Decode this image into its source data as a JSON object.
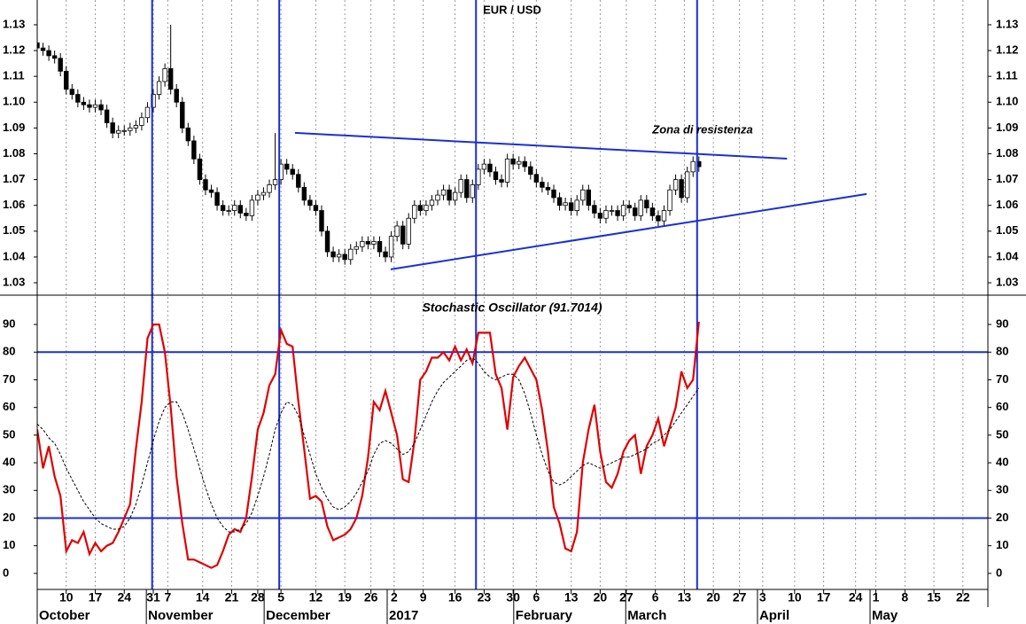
{
  "chart_data": [
    {
      "type": "candlestick",
      "title": "EUR / USD",
      "open": [
        1.123,
        1.121,
        1.12,
        1.118,
        1.117,
        1.112,
        1.105,
        1.103,
        1.1,
        1.099,
        1.098,
        1.099,
        1.097,
        1.092,
        1.088,
        1.089,
        1.089,
        1.09,
        1.091,
        1.094,
        1.098,
        1.103,
        1.108,
        1.113,
        1.105,
        1.1,
        1.09,
        1.085,
        1.078,
        1.07,
        1.066,
        1.065,
        1.06,
        1.058,
        1.058,
        1.06,
        1.057,
        1.056,
        1.062,
        1.064,
        1.065,
        1.068,
        1.07,
        1.076,
        1.074,
        1.072,
        1.067,
        1.062,
        1.06,
        1.058,
        1.05,
        1.042,
        1.04,
        1.041,
        1.039,
        1.043,
        1.044,
        1.046,
        1.045,
        1.046,
        1.042,
        1.04,
        1.048,
        1.052,
        1.045,
        1.055,
        1.06,
        1.058,
        1.06,
        1.062,
        1.064,
        1.066,
        1.062,
        1.065,
        1.07,
        1.063,
        1.068,
        1.074,
        1.076,
        1.073,
        1.07,
        1.069,
        1.078,
        1.076,
        1.077,
        1.075,
        1.072,
        1.069,
        1.067,
        1.066,
        1.063,
        1.06,
        1.061,
        1.058,
        1.062,
        1.066,
        1.06,
        1.057,
        1.055,
        1.058,
        1.058,
        1.056,
        1.06,
        1.059,
        1.056,
        1.062,
        1.059,
        1.056,
        1.054,
        1.058,
        1.066,
        1.07,
        1.063,
        1.073,
        1.077
      ],
      "high": [
        1.125,
        1.123,
        1.122,
        1.12,
        1.119,
        1.114,
        1.107,
        1.105,
        1.102,
        1.101,
        1.101,
        1.101,
        1.099,
        1.094,
        1.091,
        1.091,
        1.092,
        1.093,
        1.096,
        1.1,
        1.105,
        1.11,
        1.115,
        1.13,
        1.107,
        1.102,
        1.092,
        1.087,
        1.08,
        1.072,
        1.068,
        1.067,
        1.062,
        1.06,
        1.062,
        1.062,
        1.059,
        1.064,
        1.066,
        1.067,
        1.07,
        1.088,
        1.078,
        1.078,
        1.076,
        1.074,
        1.069,
        1.064,
        1.062,
        1.06,
        1.052,
        1.044,
        1.043,
        1.043,
        1.045,
        1.046,
        1.048,
        1.048,
        1.048,
        1.048,
        1.044,
        1.05,
        1.054,
        1.054,
        1.057,
        1.062,
        1.062,
        1.062,
        1.064,
        1.066,
        1.068,
        1.068,
        1.067,
        1.072,
        1.072,
        1.07,
        1.076,
        1.078,
        1.078,
        1.075,
        1.072,
        1.08,
        1.08,
        1.079,
        1.079,
        1.077,
        1.074,
        1.071,
        1.069,
        1.068,
        1.065,
        1.063,
        1.063,
        1.064,
        1.068,
        1.068,
        1.062,
        1.059,
        1.06,
        1.06,
        1.06,
        1.062,
        1.062,
        1.061,
        1.064,
        1.064,
        1.061,
        1.058,
        1.06,
        1.068,
        1.072,
        1.072,
        1.075,
        1.079,
        1.079
      ],
      "low": [
        1.119,
        1.118,
        1.116,
        1.115,
        1.11,
        1.103,
        1.101,
        1.098,
        1.097,
        1.096,
        1.096,
        1.095,
        1.09,
        1.086,
        1.086,
        1.087,
        1.087,
        1.088,
        1.089,
        1.092,
        1.096,
        1.101,
        1.106,
        1.103,
        1.098,
        1.088,
        1.083,
        1.076,
        1.068,
        1.064,
        1.063,
        1.058,
        1.056,
        1.056,
        1.056,
        1.055,
        1.054,
        1.054,
        1.06,
        1.062,
        1.063,
        1.066,
        1.068,
        1.072,
        1.07,
        1.065,
        1.06,
        1.058,
        1.056,
        1.048,
        1.04,
        1.038,
        1.038,
        1.037,
        1.037,
        1.041,
        1.042,
        1.043,
        1.043,
        1.04,
        1.038,
        1.038,
        1.046,
        1.043,
        1.043,
        1.053,
        1.056,
        1.056,
        1.058,
        1.06,
        1.062,
        1.06,
        1.06,
        1.063,
        1.061,
        1.061,
        1.066,
        1.072,
        1.071,
        1.068,
        1.067,
        1.067,
        1.074,
        1.074,
        1.073,
        1.07,
        1.067,
        1.065,
        1.064,
        1.061,
        1.058,
        1.058,
        1.056,
        1.056,
        1.06,
        1.058,
        1.055,
        1.053,
        1.053,
        1.056,
        1.054,
        1.054,
        1.057,
        1.054,
        1.054,
        1.057,
        1.054,
        1.052,
        1.052,
        1.056,
        1.064,
        1.061,
        1.061,
        1.071,
        1.073
      ],
      "close": [
        1.121,
        1.12,
        1.118,
        1.117,
        1.112,
        1.105,
        1.103,
        1.1,
        1.099,
        1.098,
        1.099,
        1.097,
        1.092,
        1.088,
        1.089,
        1.089,
        1.09,
        1.091,
        1.094,
        1.098,
        1.103,
        1.108,
        1.113,
        1.105,
        1.1,
        1.09,
        1.085,
        1.078,
        1.07,
        1.066,
        1.065,
        1.06,
        1.058,
        1.058,
        1.06,
        1.057,
        1.056,
        1.062,
        1.064,
        1.065,
        1.068,
        1.07,
        1.076,
        1.074,
        1.072,
        1.067,
        1.062,
        1.06,
        1.058,
        1.05,
        1.042,
        1.04,
        1.041,
        1.039,
        1.043,
        1.044,
        1.046,
        1.045,
        1.046,
        1.042,
        1.04,
        1.048,
        1.052,
        1.045,
        1.055,
        1.06,
        1.058,
        1.06,
        1.062,
        1.064,
        1.066,
        1.062,
        1.065,
        1.07,
        1.063,
        1.068,
        1.074,
        1.076,
        1.073,
        1.07,
        1.069,
        1.078,
        1.076,
        1.077,
        1.075,
        1.072,
        1.069,
        1.067,
        1.066,
        1.063,
        1.06,
        1.061,
        1.058,
        1.062,
        1.066,
        1.06,
        1.057,
        1.055,
        1.058,
        1.058,
        1.056,
        1.06,
        1.059,
        1.056,
        1.062,
        1.059,
        1.056,
        1.054,
        1.058,
        1.066,
        1.07,
        1.063,
        1.073,
        1.077,
        1.075
      ],
      "ylim": [
        1.0252,
        1.1396
      ],
      "yticks": [
        1.03,
        1.04,
        1.05,
        1.06,
        1.07,
        1.08,
        1.09,
        {
          "value": 1.1,
          "label": "1.10"
        },
        1.11,
        1.12,
        1.13
      ],
      "trendlines": [
        {
          "x": [
            44.4,
            129.2
          ],
          "y": [
            1.0881,
            1.0781
          ]
        },
        {
          "x": [
            60.9,
            142.9
          ],
          "y": [
            1.0352,
            1.0644
          ]
        }
      ],
      "trend_color": "#1a2fd6",
      "vlines": [
        19.8,
        41.7,
        75.6,
        113.7
      ],
      "annotation": "Zona di resistenza",
      "annotation_color": "#e00000"
    },
    {
      "type": "line",
      "title": "Stochastic Oscillator (91.7014)",
      "series": [
        {
          "color": "#e00000",
          "style": "solid",
          "values": [
            52,
            38,
            46,
            35,
            28,
            8,
            12,
            11,
            15,
            7,
            11,
            8,
            10,
            11,
            15,
            20,
            25,
            45,
            62,
            85,
            90,
            90,
            80,
            60,
            35,
            18,
            5,
            5,
            4,
            3,
            2,
            3,
            8,
            14,
            16,
            15,
            20,
            35,
            52,
            58,
            68,
            72,
            88,
            83,
            82,
            62,
            45,
            27,
            28,
            26,
            17,
            12,
            13,
            14,
            16,
            20,
            28,
            42,
            62,
            59,
            66,
            58,
            50,
            34,
            33,
            48,
            70,
            73,
            78,
            78,
            80,
            77,
            82,
            77,
            81,
            76,
            87,
            87,
            87,
            72,
            67,
            52,
            71,
            75,
            78,
            74,
            70,
            59,
            44,
            24,
            18,
            9,
            8,
            15,
            40,
            52,
            61,
            44,
            33,
            31,
            36,
            44,
            48,
            50,
            36,
            46,
            50,
            56,
            46,
            53,
            60,
            73,
            67,
            70,
            91
          ]
        },
        {
          "color": "#000000",
          "style": "dashed",
          "values": [
            54,
            52,
            49,
            47,
            43,
            38,
            34,
            30,
            26,
            23,
            20,
            18,
            17,
            16,
            16,
            17,
            20,
            25,
            32,
            40,
            48,
            55,
            60,
            62,
            62,
            58,
            52,
            45,
            38,
            31,
            25,
            20,
            17,
            15,
            15,
            16,
            18,
            22,
            28,
            35,
            43,
            52,
            58,
            62,
            61,
            57,
            50,
            43,
            36,
            31,
            27,
            24,
            23,
            24,
            26,
            29,
            33,
            37,
            43,
            47,
            48,
            47,
            45,
            43,
            44,
            47,
            52,
            57,
            62,
            66,
            69,
            71,
            73,
            75,
            77,
            78,
            76,
            73,
            71,
            70,
            71,
            72,
            72,
            70,
            65,
            58,
            50,
            43,
            37,
            33,
            32,
            33,
            35,
            37,
            39,
            40,
            39,
            38,
            39,
            40,
            41,
            42,
            42,
            43,
            44,
            45,
            47,
            48,
            50,
            52,
            55,
            58,
            61,
            64,
            67
          ]
        }
      ],
      "ylim": [
        -5.8,
        100.6
      ],
      "yticks": [
        0,
        10,
        20,
        30,
        40,
        50,
        60,
        70,
        80,
        90
      ],
      "hlines": [
        80,
        20
      ],
      "xlim": [
        0,
        163.8
      ],
      "xticks": [
        {
          "value": 5,
          "label": "10"
        },
        {
          "value": 10,
          "label": "17"
        },
        {
          "value": 15,
          "label": "24"
        },
        {
          "value": 20,
          "label": "31"
        },
        {
          "value": 22.5,
          "label": "7"
        },
        {
          "value": 28.5,
          "label": "14"
        },
        {
          "value": 33.5,
          "label": "21"
        },
        {
          "value": 38,
          "label": "28"
        },
        {
          "value": 42,
          "label": "5"
        },
        {
          "value": 48,
          "label": "12"
        },
        {
          "value": 53,
          "label": "19"
        },
        {
          "value": 57.5,
          "label": "26"
        },
        {
          "value": 61.5,
          "label": "2"
        },
        {
          "value": 66.5,
          "label": "9"
        },
        {
          "value": 72,
          "label": "16"
        },
        {
          "value": 77,
          "label": "23"
        },
        {
          "value": 82,
          "label": "30"
        },
        {
          "value": 86,
          "label": "6"
        },
        {
          "value": 92,
          "label": "13"
        },
        {
          "value": 97,
          "label": "20"
        },
        {
          "value": 101.5,
          "label": "27"
        },
        {
          "value": 106.5,
          "label": "6"
        },
        {
          "value": 111.5,
          "label": "13"
        },
        {
          "value": 116.5,
          "label": "20"
        },
        {
          "value": 121,
          "label": "27"
        },
        {
          "value": 125,
          "label": "3"
        },
        {
          "value": 130.5,
          "label": "10"
        },
        {
          "value": 135.5,
          "label": "17"
        },
        {
          "value": 141,
          "label": "24"
        },
        {
          "value": 144.5,
          "label": "1"
        },
        {
          "value": 149.5,
          "label": "8"
        },
        {
          "value": 154.5,
          "label": "15"
        },
        {
          "value": 159.5,
          "label": "22"
        }
      ],
      "month_ticks": [
        {
          "value": 0,
          "label": "October"
        },
        {
          "value": 18.8,
          "label": "November"
        },
        {
          "value": 39.1,
          "label": "December"
        },
        {
          "value": 60.3,
          "label": "2017"
        },
        {
          "value": 82.1,
          "label": "February"
        },
        {
          "value": 101.4,
          "label": "March"
        },
        {
          "value": 124.1,
          "label": "April"
        },
        {
          "value": 143.5,
          "label": "May"
        }
      ]
    }
  ]
}
